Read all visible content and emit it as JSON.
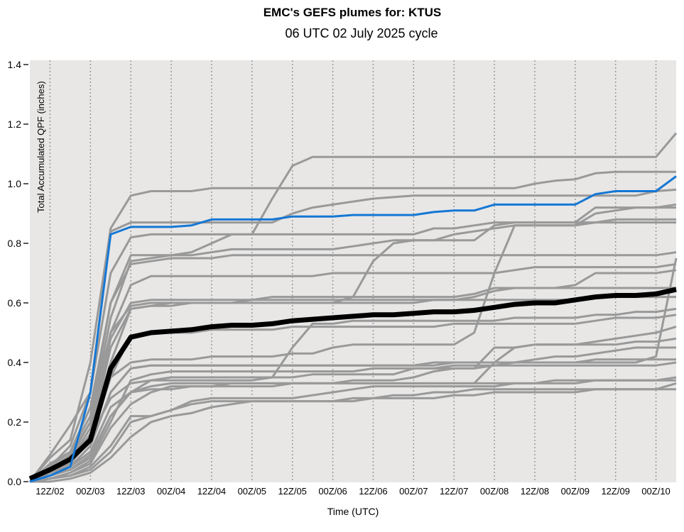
{
  "chart_data": {
    "type": "line",
    "title": "EMC's GEFS plumes for: KTUS",
    "subtitle": "06 UTC 02 July 2025 cycle",
    "xlabel": "Time (UTC)",
    "ylabel": "Total Accumulated QPF (inches)",
    "ylim": [
      0,
      1.4
    ],
    "yticks": [
      "0.0",
      "0.2",
      "0.4",
      "0.6",
      "0.8",
      "1.0",
      "1.2",
      "1.4"
    ],
    "x_hours_range": [
      0,
      192
    ],
    "x_step_hours": 6,
    "xticks": [
      {
        "label": "12Z/02",
        "hour": 6
      },
      {
        "label": "00Z/03",
        "hour": 18
      },
      {
        "label": "12Z/03",
        "hour": 30
      },
      {
        "label": "00Z/04",
        "hour": 42
      },
      {
        "label": "12Z/04",
        "hour": 54
      },
      {
        "label": "00Z/05",
        "hour": 66
      },
      {
        "label": "12Z/05",
        "hour": 78
      },
      {
        "label": "00Z/06",
        "hour": 90
      },
      {
        "label": "12Z/06",
        "hour": 102
      },
      {
        "label": "00Z/07",
        "hour": 114
      },
      {
        "label": "12Z/07",
        "hour": 126
      },
      {
        "label": "00Z/08",
        "hour": 138
      },
      {
        "label": "12Z/08",
        "hour": 150
      },
      {
        "label": "00Z/09",
        "hour": 162
      },
      {
        "label": "12Z/09",
        "hour": 174
      },
      {
        "label": "00Z/10",
        "hour": 186
      }
    ],
    "grid": "vertical dotted at ticks",
    "colors": {
      "members": "#999999",
      "mean": "#000000",
      "control": "#1577d4",
      "background": "#e8e7e6"
    },
    "members": [
      [
        0,
        0.09,
        0.19,
        0.3,
        0.7,
        0.82,
        0.83,
        0.83,
        0.83,
        0.83,
        0.83,
        0.83,
        0.95,
        1.06,
        1.09,
        1.09,
        1.09,
        1.09,
        1.09,
        1.09,
        1.09,
        1.09,
        1.09,
        1.09,
        1.09,
        1.09,
        1.09,
        1.09,
        1.09,
        1.09,
        1.09,
        1.09,
        1.17
      ],
      [
        0,
        0.08,
        0.14,
        0.4,
        0.85,
        0.96,
        0.975,
        0.975,
        0.975,
        0.985,
        0.985,
        0.985,
        0.985,
        0.985,
        0.985,
        0.985,
        0.985,
        0.985,
        0.985,
        0.985,
        0.985,
        0.985,
        0.985,
        0.985,
        0.985,
        1.0,
        1.01,
        1.015,
        1.035,
        1.04,
        1.04,
        1.04,
        1.04
      ],
      [
        0,
        0.05,
        0.12,
        0.3,
        0.84,
        0.87,
        0.87,
        0.87,
        0.87,
        0.87,
        0.87,
        0.87,
        0.87,
        0.9,
        0.92,
        0.93,
        0.94,
        0.95,
        0.955,
        0.96,
        0.96,
        0.96,
        0.96,
        0.96,
        0.96,
        0.96,
        0.96,
        0.96,
        0.96,
        0.96,
        0.96,
        0.975,
        0.98
      ],
      [
        0,
        0.06,
        0.1,
        0.25,
        0.6,
        0.76,
        0.76,
        0.76,
        0.77,
        0.8,
        0.83,
        0.83,
        0.83,
        0.83,
        0.83,
        0.83,
        0.83,
        0.83,
        0.83,
        0.83,
        0.85,
        0.85,
        0.86,
        0.87,
        0.87,
        0.87,
        0.87,
        0.87,
        0.92,
        0.92,
        0.92,
        0.92,
        0.93
      ],
      [
        0,
        0.03,
        0.08,
        0.2,
        0.55,
        0.74,
        0.75,
        0.76,
        0.76,
        0.77,
        0.78,
        0.78,
        0.78,
        0.78,
        0.78,
        0.78,
        0.79,
        0.8,
        0.81,
        0.81,
        0.81,
        0.81,
        0.81,
        0.86,
        0.87,
        0.87,
        0.87,
        0.87,
        0.87,
        0.88,
        0.88,
        0.88,
        0.88
      ],
      [
        0,
        0.04,
        0.08,
        0.15,
        0.35,
        0.4,
        0.41,
        0.41,
        0.41,
        0.42,
        0.42,
        0.42,
        0.42,
        0.43,
        0.43,
        0.45,
        0.46,
        0.46,
        0.46,
        0.46,
        0.46,
        0.46,
        0.5,
        0.7,
        0.86,
        0.86,
        0.86,
        0.86,
        0.87,
        0.87,
        0.87,
        0.87,
        0.87
      ],
      [
        0,
        0.05,
        0.1,
        0.22,
        0.6,
        0.73,
        0.74,
        0.75,
        0.75,
        0.75,
        0.76,
        0.76,
        0.76,
        0.76,
        0.76,
        0.76,
        0.76,
        0.76,
        0.76,
        0.76,
        0.76,
        0.76,
        0.76,
        0.76,
        0.76,
        0.76,
        0.76,
        0.76,
        0.76,
        0.76,
        0.76,
        0.76,
        0.77
      ],
      [
        0,
        0.02,
        0.05,
        0.12,
        0.3,
        0.38,
        0.39,
        0.39,
        0.39,
        0.39,
        0.39,
        0.39,
        0.39,
        0.39,
        0.39,
        0.39,
        0.39,
        0.39,
        0.39,
        0.39,
        0.4,
        0.4,
        0.4,
        0.4,
        0.4,
        0.4,
        0.4,
        0.4,
        0.4,
        0.4,
        0.4,
        0.42,
        0.75
      ],
      [
        0,
        0.04,
        0.09,
        0.2,
        0.5,
        0.66,
        0.69,
        0.69,
        0.69,
        0.69,
        0.69,
        0.69,
        0.69,
        0.69,
        0.69,
        0.7,
        0.7,
        0.7,
        0.7,
        0.7,
        0.7,
        0.7,
        0.7,
        0.7,
        0.71,
        0.72,
        0.72,
        0.72,
        0.72,
        0.72,
        0.72,
        0.72,
        0.73
      ],
      [
        0,
        0.03,
        0.07,
        0.18,
        0.48,
        0.6,
        0.61,
        0.61,
        0.61,
        0.61,
        0.61,
        0.61,
        0.62,
        0.62,
        0.62,
        0.62,
        0.62,
        0.62,
        0.62,
        0.62,
        0.62,
        0.62,
        0.63,
        0.65,
        0.65,
        0.65,
        0.65,
        0.66,
        0.7,
        0.7,
        0.7,
        0.7,
        0.71
      ],
      [
        0,
        0.02,
        0.06,
        0.15,
        0.45,
        0.58,
        0.59,
        0.59,
        0.6,
        0.6,
        0.6,
        0.6,
        0.6,
        0.6,
        0.6,
        0.6,
        0.6,
        0.6,
        0.6,
        0.6,
        0.61,
        0.61,
        0.61,
        0.61,
        0.61,
        0.61,
        0.61,
        0.61,
        0.62,
        0.62,
        0.62,
        0.62,
        0.62
      ],
      [
        0,
        0.03,
        0.07,
        0.15,
        0.28,
        0.33,
        0.34,
        0.34,
        0.34,
        0.34,
        0.34,
        0.34,
        0.35,
        0.45,
        0.53,
        0.53,
        0.54,
        0.54,
        0.54,
        0.54,
        0.54,
        0.54,
        0.54,
        0.54,
        0.55,
        0.55,
        0.55,
        0.55,
        0.56,
        0.56,
        0.57,
        0.57,
        0.58
      ],
      [
        0,
        0.02,
        0.05,
        0.1,
        0.25,
        0.3,
        0.31,
        0.31,
        0.32,
        0.32,
        0.32,
        0.32,
        0.32,
        0.33,
        0.33,
        0.33,
        0.33,
        0.33,
        0.33,
        0.33,
        0.33,
        0.33,
        0.33,
        0.4,
        0.45,
        0.46,
        0.46,
        0.46,
        0.47,
        0.48,
        0.49,
        0.5,
        0.52
      ],
      [
        0,
        0.03,
        0.07,
        0.16,
        0.4,
        0.58,
        0.59,
        0.6,
        0.6,
        0.6,
        0.6,
        0.6,
        0.6,
        0.6,
        0.6,
        0.6,
        0.62,
        0.74,
        0.8,
        0.81,
        0.81,
        0.83,
        0.84,
        0.85,
        0.86,
        0.86,
        0.86,
        0.86,
        0.9,
        0.91,
        0.92,
        0.92,
        0.92
      ],
      [
        0,
        0.02,
        0.04,
        0.09,
        0.22,
        0.3,
        0.34,
        0.35,
        0.35,
        0.35,
        0.35,
        0.35,
        0.35,
        0.35,
        0.36,
        0.36,
        0.36,
        0.36,
        0.36,
        0.38,
        0.38,
        0.38,
        0.38,
        0.45,
        0.45,
        0.46,
        0.46,
        0.46,
        0.46,
        0.46,
        0.47,
        0.47,
        0.48
      ],
      [
        0,
        0.01,
        0.03,
        0.07,
        0.2,
        0.34,
        0.36,
        0.37,
        0.37,
        0.37,
        0.37,
        0.37,
        0.37,
        0.37,
        0.37,
        0.37,
        0.37,
        0.38,
        0.38,
        0.38,
        0.38,
        0.39,
        0.39,
        0.39,
        0.4,
        0.41,
        0.42,
        0.42,
        0.43,
        0.44,
        0.45,
        0.45,
        0.45
      ],
      [
        0,
        0.02,
        0.05,
        0.12,
        0.3,
        0.38,
        0.39,
        0.39,
        0.39,
        0.39,
        0.39,
        0.39,
        0.39,
        0.39,
        0.39,
        0.39,
        0.39,
        0.39,
        0.39,
        0.39,
        0.39,
        0.4,
        0.4,
        0.4,
        0.4,
        0.4,
        0.4,
        0.4,
        0.41,
        0.41,
        0.41,
        0.41,
        0.41
      ],
      [
        0,
        0.01,
        0.03,
        0.06,
        0.18,
        0.26,
        0.3,
        0.32,
        0.32,
        0.32,
        0.33,
        0.33,
        0.33,
        0.33,
        0.33,
        0.33,
        0.34,
        0.34,
        0.34,
        0.35,
        0.37,
        0.38,
        0.38,
        0.39,
        0.39,
        0.39,
        0.39,
        0.39,
        0.39,
        0.39,
        0.39,
        0.39,
        0.4
      ],
      [
        0,
        0.01,
        0.02,
        0.05,
        0.12,
        0.22,
        0.22,
        0.24,
        0.27,
        0.28,
        0.28,
        0.28,
        0.28,
        0.28,
        0.29,
        0.3,
        0.31,
        0.32,
        0.32,
        0.32,
        0.32,
        0.32,
        0.32,
        0.32,
        0.33,
        0.33,
        0.34,
        0.34,
        0.34,
        0.34,
        0.34,
        0.34,
        0.35
      ],
      [
        0,
        0.02,
        0.04,
        0.08,
        0.22,
        0.3,
        0.32,
        0.33,
        0.33,
        0.33,
        0.33,
        0.33,
        0.33,
        0.33,
        0.33,
        0.33,
        0.33,
        0.33,
        0.33,
        0.33,
        0.33,
        0.33,
        0.33,
        0.33,
        0.33,
        0.33,
        0.33,
        0.33,
        0.34,
        0.34,
        0.34,
        0.34,
        0.34
      ],
      [
        0,
        0.01,
        0.02,
        0.04,
        0.1,
        0.2,
        0.22,
        0.24,
        0.26,
        0.27,
        0.27,
        0.27,
        0.27,
        0.27,
        0.27,
        0.27,
        0.28,
        0.28,
        0.29,
        0.29,
        0.3,
        0.3,
        0.31,
        0.31,
        0.31,
        0.31,
        0.31,
        0.31,
        0.31,
        0.31,
        0.31,
        0.31,
        0.33
      ],
      [
        0,
        0,
        0.01,
        0.03,
        0.08,
        0.15,
        0.2,
        0.22,
        0.23,
        0.25,
        0.26,
        0.27,
        0.27,
        0.27,
        0.27,
        0.27,
        0.27,
        0.28,
        0.28,
        0.28,
        0.28,
        0.29,
        0.29,
        0.3,
        0.3,
        0.3,
        0.3,
        0.3,
        0.31,
        0.31,
        0.31,
        0.31,
        0.31
      ],
      [
        0,
        0.03,
        0.06,
        0.14,
        0.35,
        0.49,
        0.5,
        0.5,
        0.5,
        0.51,
        0.51,
        0.51,
        0.51,
        0.52,
        0.52,
        0.52,
        0.52,
        0.52,
        0.52,
        0.52,
        0.52,
        0.53,
        0.53,
        0.53,
        0.53,
        0.53,
        0.53,
        0.53,
        0.54,
        0.55,
        0.55,
        0.55,
        0.56
      ],
      [
        0,
        0.04,
        0.09,
        0.2,
        0.5,
        0.59,
        0.6,
        0.6,
        0.6,
        0.6,
        0.6,
        0.61,
        0.61,
        0.61,
        0.61,
        0.61,
        0.61,
        0.61,
        0.61,
        0.61,
        0.61,
        0.61,
        0.62,
        0.64,
        0.65,
        0.65,
        0.65,
        0.65,
        0.65,
        0.65,
        0.65,
        0.65,
        0.65
      ]
    ],
    "control": [
      0,
      0.02,
      0.05,
      0.3,
      0.83,
      0.855,
      0.855,
      0.855,
      0.86,
      0.88,
      0.88,
      0.88,
      0.88,
      0.89,
      0.89,
      0.89,
      0.895,
      0.895,
      0.895,
      0.895,
      0.905,
      0.91,
      0.91,
      0.93,
      0.93,
      0.93,
      0.93,
      0.93,
      0.965,
      0.975,
      0.975,
      0.975,
      1.025
    ],
    "mean": [
      0.01,
      0.04,
      0.075,
      0.14,
      0.38,
      0.485,
      0.5,
      0.505,
      0.51,
      0.52,
      0.525,
      0.525,
      0.53,
      0.54,
      0.545,
      0.55,
      0.555,
      0.56,
      0.56,
      0.565,
      0.57,
      0.57,
      0.575,
      0.585,
      0.595,
      0.6,
      0.6,
      0.61,
      0.62,
      0.625,
      0.625,
      0.63,
      0.645
    ]
  }
}
